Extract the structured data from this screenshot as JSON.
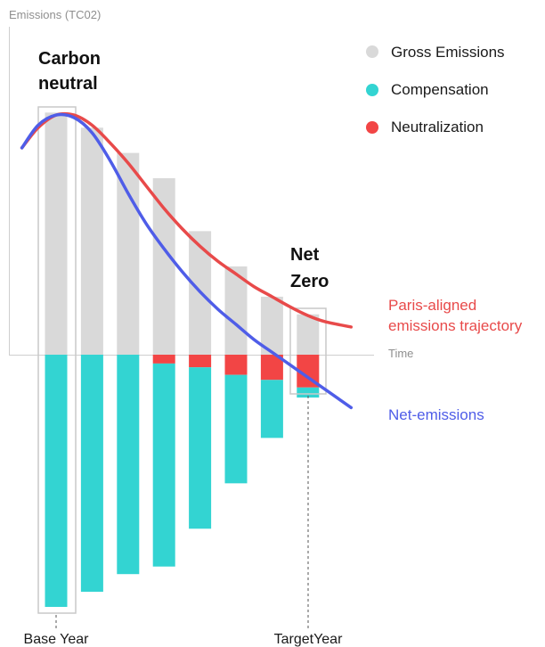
{
  "chart_data": {
    "type": "bar",
    "ylabel": "Emissions (TC02)",
    "xlabel": "Time",
    "categories": [
      "Base Year",
      "",
      "",
      "",
      "",
      "",
      "",
      "TargetYear"
    ],
    "ylim": [
      -100,
      100
    ],
    "series": [
      {
        "name": "Gross Emissions",
        "color": "#d9d9d9",
        "values": [
          96,
          90,
          80,
          70,
          49,
          35,
          23,
          16
        ]
      },
      {
        "name": "Compensation",
        "color": "#33d4d2",
        "values": [
          -100,
          -94,
          -87,
          -84,
          -69,
          -51,
          -33,
          -17
        ]
      },
      {
        "name": "Neutralization",
        "color": "#f24545",
        "values": [
          0,
          0,
          0,
          -3.5,
          -5,
          -8,
          -10,
          -13
        ]
      }
    ],
    "lines": [
      {
        "name": "Paris-aligned emissions trajectory",
        "color": "#e84a4a",
        "x": [
          -0.95,
          -0.5,
          0,
          0.5,
          1,
          1.5,
          2,
          2.5,
          3,
          3.5,
          4,
          4.5,
          5,
          5.5,
          6,
          6.5,
          7,
          7.5,
          8.2
        ],
        "y": [
          82,
          90,
          95,
          95,
          91,
          84,
          76,
          67,
          58,
          50,
          43,
          37,
          32,
          27,
          23,
          19,
          15.5,
          13,
          11
        ]
      },
      {
        "name": "Net-emissions",
        "color": "#4f5de8",
        "x": [
          -0.95,
          -0.5,
          0,
          0.5,
          1,
          1.5,
          2,
          2.5,
          3,
          3.5,
          4,
          4.5,
          5,
          5.5,
          6,
          6.5,
          7,
          7.5,
          8.2
        ],
        "y": [
          82,
          91,
          95,
          94,
          88,
          77,
          64,
          52,
          42,
          33,
          25,
          18,
          12,
          6,
          1,
          -4,
          -9,
          -14,
          -21
        ]
      }
    ],
    "annotations": {
      "carbon_neutral": [
        "Carbon",
        "neutral"
      ],
      "net_zero": [
        "Net",
        "Zero"
      ]
    },
    "legend_position": "top-right",
    "grid": false
  }
}
